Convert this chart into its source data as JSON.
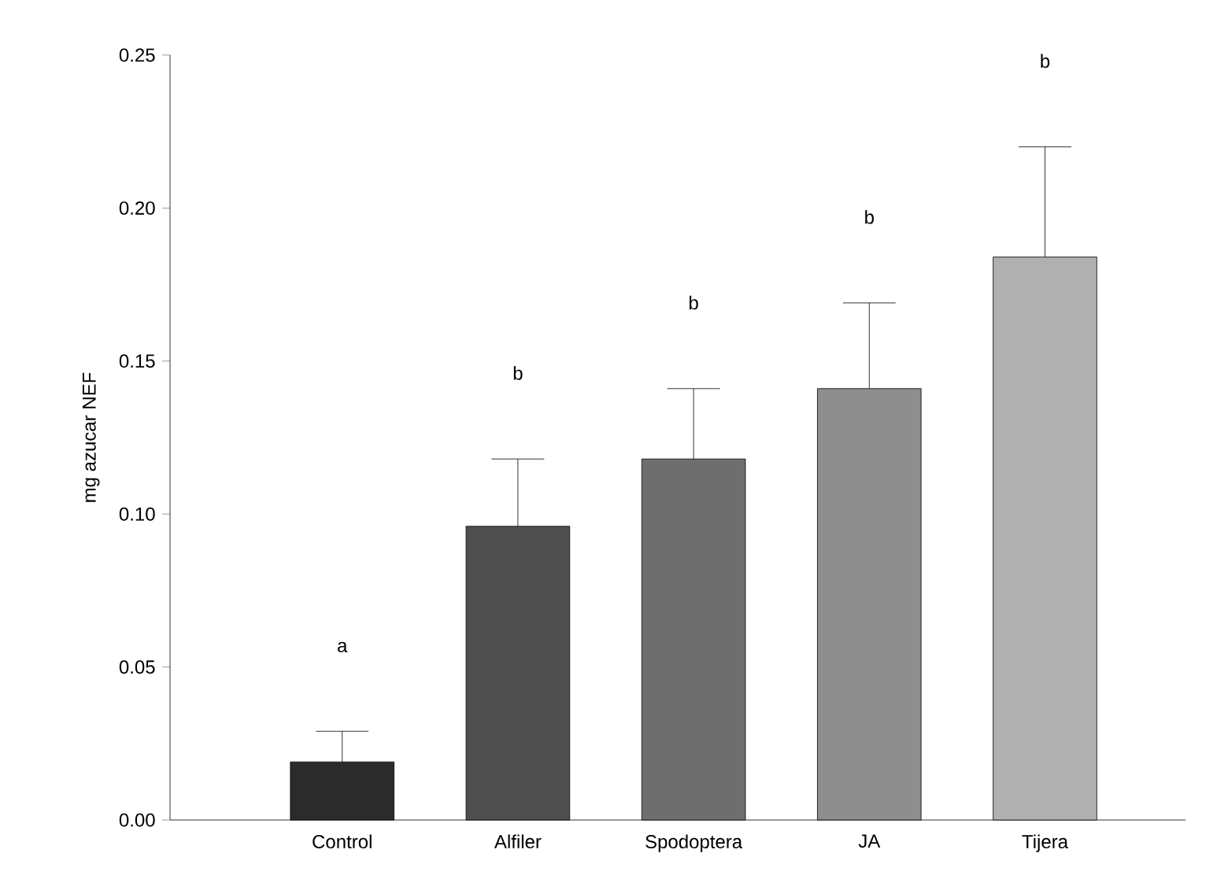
{
  "chart_data": {
    "type": "bar",
    "ylabel": "mg azucar NEF",
    "categories": [
      "Control",
      "Alfiler",
      "Spodoptera",
      "JA",
      "Tijera"
    ],
    "values": [
      0.019,
      0.096,
      0.118,
      0.141,
      0.184
    ],
    "colors": [
      "#2b2b2b",
      "#4f4f4f",
      "#6e6e6e",
      "#8e8e8e",
      "#b0b0b0"
    ],
    "errors": [
      [
        0.019,
        0.029
      ],
      [
        0.096,
        0.118
      ],
      [
        0.118,
        0.141
      ],
      [
        0.141,
        0.169
      ],
      [
        0.184,
        0.22
      ]
    ],
    "ylim": [
      0,
      0.25
    ],
    "yticks": [
      {
        "value": 0,
        "label": "0.00"
      },
      {
        "value": 0.05,
        "label": "0.05"
      },
      {
        "value": 0.1,
        "label": "0.10"
      },
      {
        "value": 0.15,
        "label": "0.15"
      },
      {
        "value": 0.2,
        "label": "0.20"
      },
      {
        "value": 0.25,
        "label": "0.25"
      }
    ],
    "annotations": [
      "a",
      "b",
      "b",
      "b",
      "b"
    ]
  }
}
